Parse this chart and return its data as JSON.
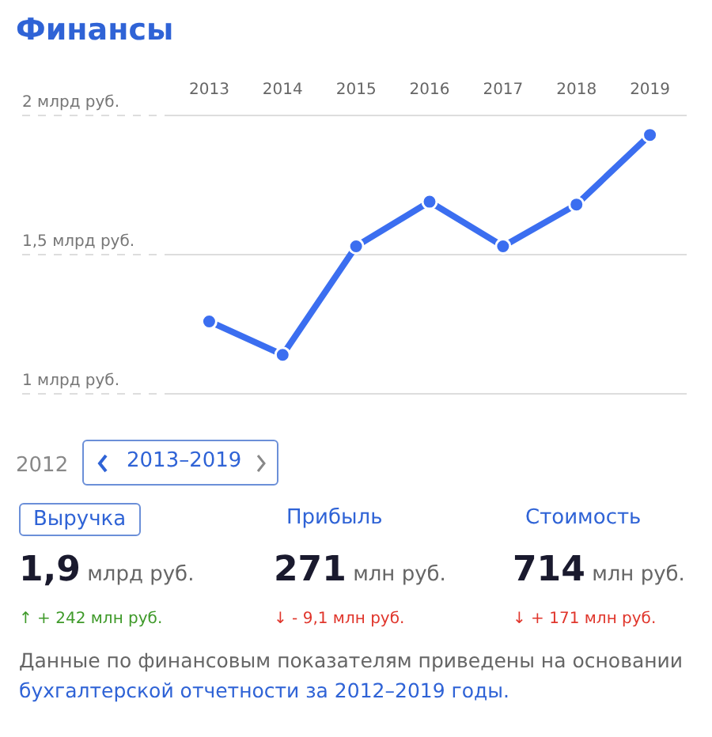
{
  "chart_data": {
    "type": "line",
    "title": "Финансы",
    "categories": [
      "2013",
      "2014",
      "2015",
      "2016",
      "2017",
      "2018",
      "2019"
    ],
    "series": [
      {
        "color": "#3b6ef0",
        "values": [
          1.26,
          1.14,
          1.53,
          1.69,
          1.53,
          1.68,
          1.93
        ]
      }
    ],
    "ylim": [
      1,
      2
    ],
    "yticks": [
      {
        "value": 1,
        "label": "1 млрд руб."
      },
      {
        "value": 1.5,
        "label": "1,5 млрд руб."
      },
      {
        "value": 2,
        "label": "2 млрд руб."
      }
    ],
    "grid": "y",
    "legend": false,
    "marker": "circle",
    "line_style": "solid",
    "annotations": [
      "2012",
      "2013–2019",
      "Выручка",
      "Прибыль",
      "Стоимость",
      "1,9 млрд руб.",
      "271 млн руб.",
      "714 млн руб.",
      "↑ + 242 млн руб.",
      "↓ - 9,1 млн руб.",
      "↓ + 171 млн руб.",
      "Данные по финансовым показателям приведены на основании",
      "бухгалтерской отчетности за 2012–2019 годы."
    ]
  }
}
